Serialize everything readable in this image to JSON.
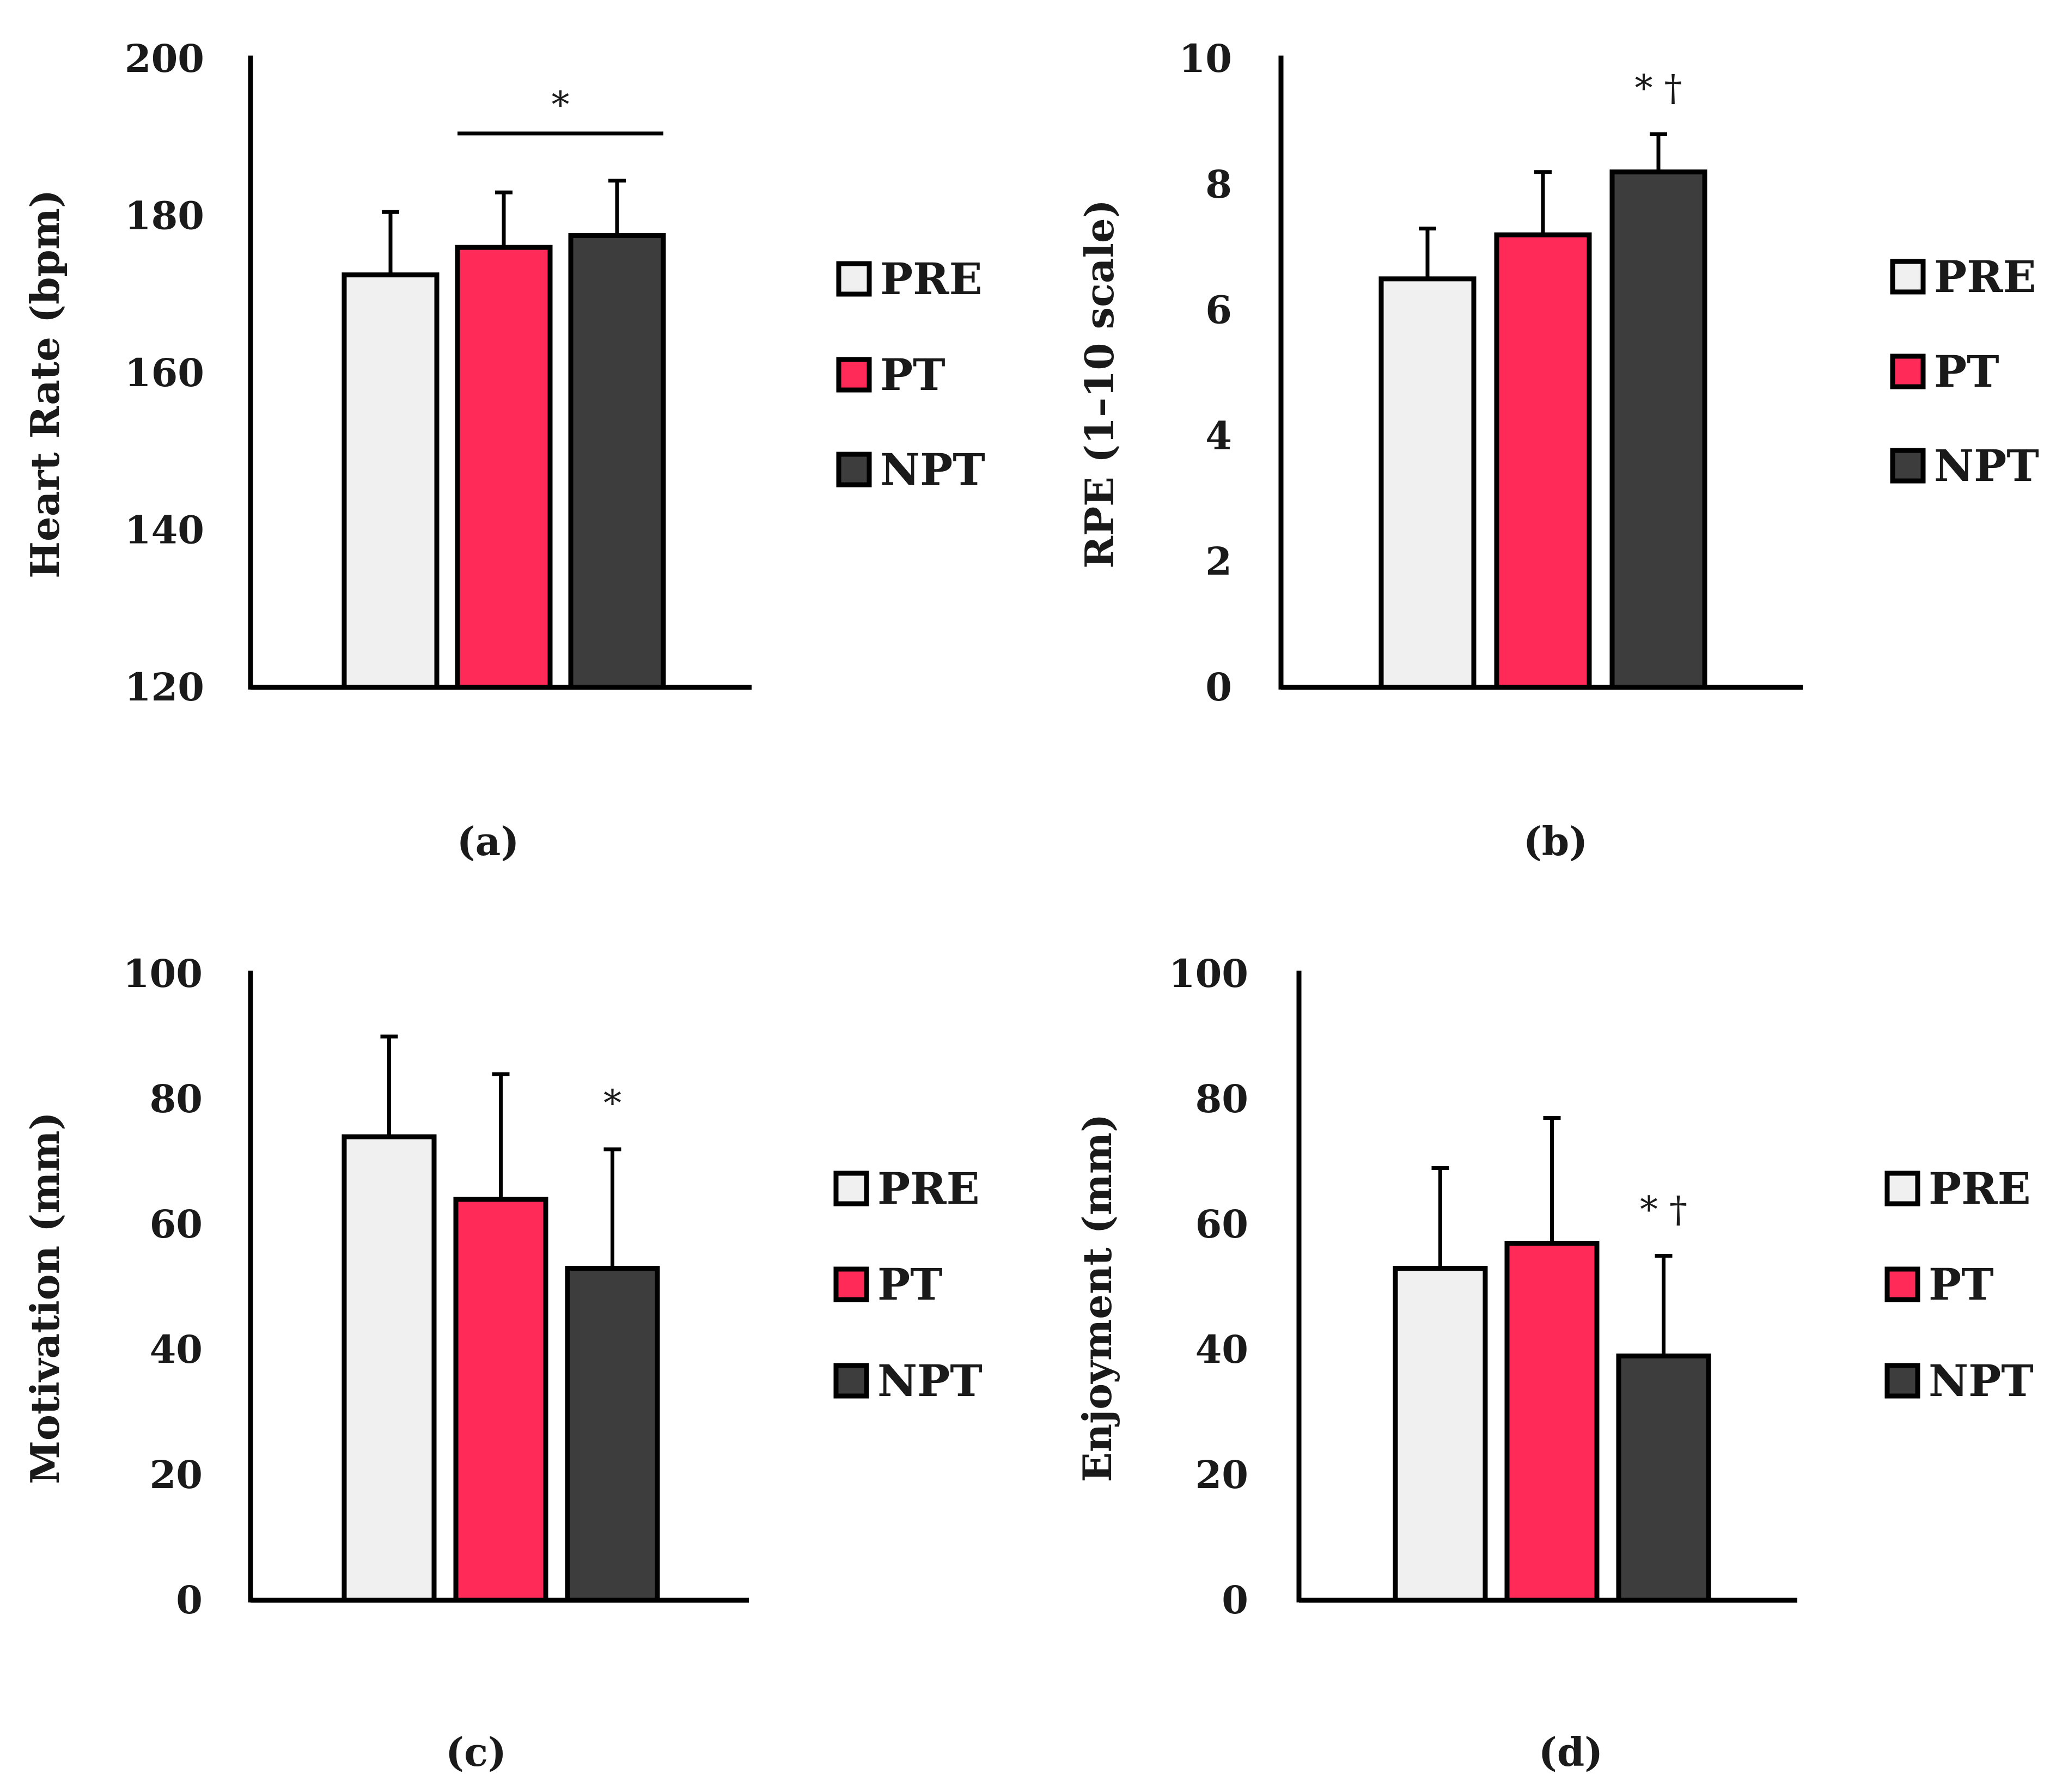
{
  "legend_labels": [
    "PRE",
    "PT",
    "NPT"
  ],
  "colors": {
    "PRE": "#f0f0f0",
    "PT": "#ff2a57",
    "NPT": "#3d3d3d",
    "stroke": "#000000"
  },
  "chart_data": [
    {
      "panel": "(a)",
      "type": "bar",
      "title": "",
      "xlabel": "",
      "ylabel": "Heart Rate (bpm)",
      "categories": [
        "PRE",
        "PT",
        "NPT"
      ],
      "values": [
        172.5,
        176,
        177.5
      ],
      "error": [
        8,
        7,
        7
      ],
      "ylim": [
        120,
        200
      ],
      "yticks": [
        120,
        140,
        160,
        180,
        200
      ],
      "annotations": [
        {
          "text": "*",
          "type": "bracket",
          "from": 1,
          "to": 2,
          "y": 190.5
        }
      ],
      "legend_position": "right"
    },
    {
      "panel": "(b)",
      "type": "bar",
      "title": "",
      "xlabel": "",
      "ylabel": "RPE (1–10 scale)",
      "categories": [
        "PRE",
        "PT",
        "NPT"
      ],
      "values": [
        6.5,
        7.2,
        8.2
      ],
      "error": [
        0.8,
        1.0,
        0.6
      ],
      "ylim": [
        0,
        10
      ],
      "yticks": [
        0,
        2,
        4,
        6,
        8,
        10
      ],
      "annotations": [
        {
          "text": "* †",
          "type": "above",
          "bar": 2
        }
      ],
      "legend_position": "right"
    },
    {
      "panel": "(c)",
      "type": "bar",
      "title": "",
      "xlabel": "",
      "ylabel": "Motivation (mm)",
      "categories": [
        "PRE",
        "PT",
        "NPT"
      ],
      "values": [
        74,
        64,
        53
      ],
      "error": [
        16,
        20,
        19
      ],
      "ylim": [
        0,
        100
      ],
      "yticks": [
        0,
        20,
        40,
        60,
        80,
        100
      ],
      "annotations": [
        {
          "text": "*",
          "type": "above",
          "bar": 2
        }
      ],
      "legend_position": "right"
    },
    {
      "panel": "(d)",
      "type": "bar",
      "title": "",
      "xlabel": "",
      "ylabel": "Enjoyment (mm)",
      "categories": [
        "PRE",
        "PT",
        "NPT"
      ],
      "values": [
        53,
        57,
        39
      ],
      "error": [
        16,
        20,
        16
      ],
      "ylim": [
        0,
        100
      ],
      "yticks": [
        0,
        20,
        40,
        60,
        80,
        100
      ],
      "annotations": [
        {
          "text": "* †",
          "type": "above",
          "bar": 2
        }
      ],
      "legend_position": "right"
    }
  ]
}
